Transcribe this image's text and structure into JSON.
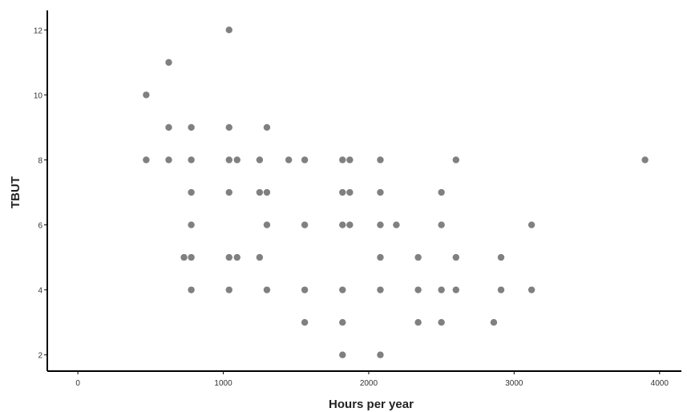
{
  "colors": {
    "point": "#808080",
    "axis": "#000000",
    "text": "#333333"
  },
  "chart_data": {
    "type": "scatter",
    "title": "",
    "xlabel": "Hours per year",
    "ylabel": "TBUT",
    "xlim": [
      -210,
      4150
    ],
    "ylim": [
      1.5,
      12.6
    ],
    "xticks": [
      0,
      1000,
      2000,
      3000,
      4000
    ],
    "yticks": [
      2,
      4,
      6,
      8,
      10,
      12
    ],
    "grid": false,
    "legend": "none",
    "points": [
      [
        470,
        10
      ],
      [
        470,
        8
      ],
      [
        625,
        11
      ],
      [
        625,
        9
      ],
      [
        625,
        8
      ],
      [
        730,
        5
      ],
      [
        780,
        9
      ],
      [
        780,
        8
      ],
      [
        780,
        7
      ],
      [
        780,
        6
      ],
      [
        780,
        5
      ],
      [
        780,
        4
      ],
      [
        1040,
        12
      ],
      [
        1040,
        9
      ],
      [
        1040,
        8
      ],
      [
        1040,
        7
      ],
      [
        1040,
        5
      ],
      [
        1040,
        4
      ],
      [
        1095,
        8
      ],
      [
        1095,
        5
      ],
      [
        1250,
        8
      ],
      [
        1250,
        7
      ],
      [
        1250,
        5
      ],
      [
        1300,
        9
      ],
      [
        1300,
        7
      ],
      [
        1300,
        6
      ],
      [
        1300,
        4
      ],
      [
        1450,
        8
      ],
      [
        1560,
        8
      ],
      [
        1560,
        6
      ],
      [
        1560,
        4
      ],
      [
        1560,
        3
      ],
      [
        1820,
        8
      ],
      [
        1820,
        7
      ],
      [
        1820,
        6
      ],
      [
        1820,
        4
      ],
      [
        1820,
        3
      ],
      [
        1820,
        2
      ],
      [
        1870,
        8
      ],
      [
        1870,
        7
      ],
      [
        1870,
        6
      ],
      [
        2080,
        8
      ],
      [
        2080,
        7
      ],
      [
        2080,
        6
      ],
      [
        2080,
        5
      ],
      [
        2080,
        4
      ],
      [
        2080,
        2
      ],
      [
        2190,
        6
      ],
      [
        2340,
        5
      ],
      [
        2340,
        4
      ],
      [
        2340,
        3
      ],
      [
        2500,
        7
      ],
      [
        2500,
        6
      ],
      [
        2500,
        4
      ],
      [
        2500,
        3
      ],
      [
        2600,
        8
      ],
      [
        2600,
        5
      ],
      [
        2600,
        4
      ],
      [
        2860,
        3
      ],
      [
        2910,
        5
      ],
      [
        2910,
        4
      ],
      [
        3120,
        6
      ],
      [
        3120,
        4
      ],
      [
        3900,
        8
      ]
    ]
  }
}
